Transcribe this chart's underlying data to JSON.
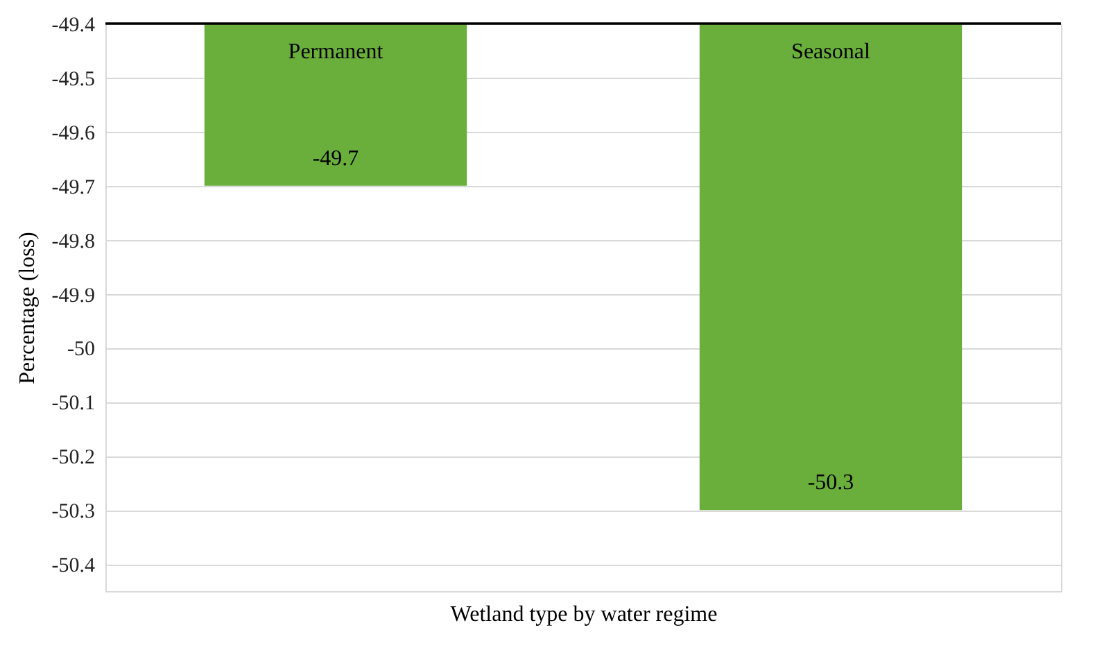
{
  "chart_data": {
    "type": "bar",
    "xlabel": "Wetland type by water regime",
    "ylabel": "Percentage  (loss)",
    "categories": [
      "Permanent",
      "Seasonal"
    ],
    "values": [
      -49.7,
      -50.3
    ],
    "color": "#6aae3c",
    "data_labels": true,
    "ylim": [
      -50.45,
      -49.4
    ],
    "yticks": [
      -50.4,
      -50.3,
      -50.2,
      -50.1,
      -50,
      -49.9,
      -49.8,
      -49.7,
      -49.6,
      -49.5,
      -49.4
    ],
    "grid": "y",
    "tick_labels": "y"
  }
}
